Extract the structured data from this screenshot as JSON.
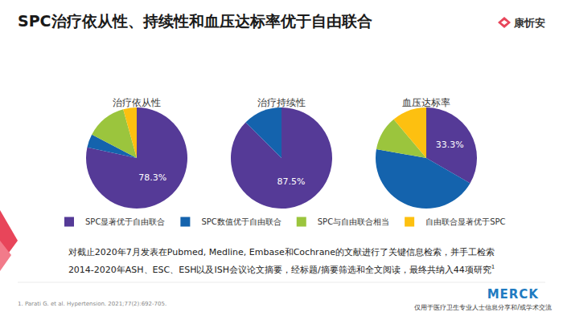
{
  "title": "SPC治疗依从性、持续性和血压达标率优于自由联合",
  "logo": "康忻安",
  "chart_data": [
    {
      "type": "pie",
      "title": "治疗依从性",
      "categories": [
        "SPC显著优于自由联合",
        "SPC数值优于自由联合",
        "SPC与自由联合相当",
        "自由联合显著优于SPC"
      ],
      "values": [
        78.3,
        4.3,
        13.0,
        4.3
      ],
      "colors": [
        "#553a97",
        "#1463ad",
        "#9bc53d",
        "#fdc010"
      ],
      "value_labels": [
        "78.3%",
        null,
        null,
        null
      ],
      "data_labels": true,
      "legend": "bottom"
    },
    {
      "type": "pie",
      "title": "治疗持续性",
      "categories": [
        "SPC显著优于自由联合",
        "SPC数值优于自由联合",
        "SPC与自由联合相当",
        "自由联合显著优于SPC"
      ],
      "values": [
        87.5,
        12.5,
        0,
        0
      ],
      "colors": [
        "#553a97",
        "#1463ad",
        "#9bc53d",
        "#fdc010"
      ],
      "value_labels": [
        "87.5%",
        null,
        null,
        null
      ],
      "data_labels": true,
      "legend": "bottom"
    },
    {
      "type": "pie",
      "title": "血压达标率",
      "categories": [
        "SPC显著优于自由联合",
        "SPC数值优于自由联合",
        "SPC与自由联合相当",
        "自由联合显著优于SPC"
      ],
      "values": [
        33.3,
        44.4,
        11.1,
        11.1
      ],
      "colors": [
        "#553a97",
        "#1463ad",
        "#9bc53d",
        "#fdc010"
      ],
      "value_labels": [
        "33.3%",
        null,
        null,
        null
      ],
      "data_labels": true,
      "legend": "bottom"
    }
  ],
  "footnote": [
    "对截止2020年7月发表在Pubmed, Medline, Embase和Cochrane的文献进行了关键信息检索，并手工检索",
    "2014-2020年ASH、ESC、ESH以及ISH会议论文摘要，经标题/摘要筛选和全文阅读，最终共纳入44项研究"
  ],
  "footnote_ref": "1",
  "reference": "1. Parati G. et al. Hypertension. 2021;77(2):692-705.",
  "brand": "MERCK",
  "disclaimer": "仅用于医疗卫生专业人士信息分享和/或学术交流"
}
